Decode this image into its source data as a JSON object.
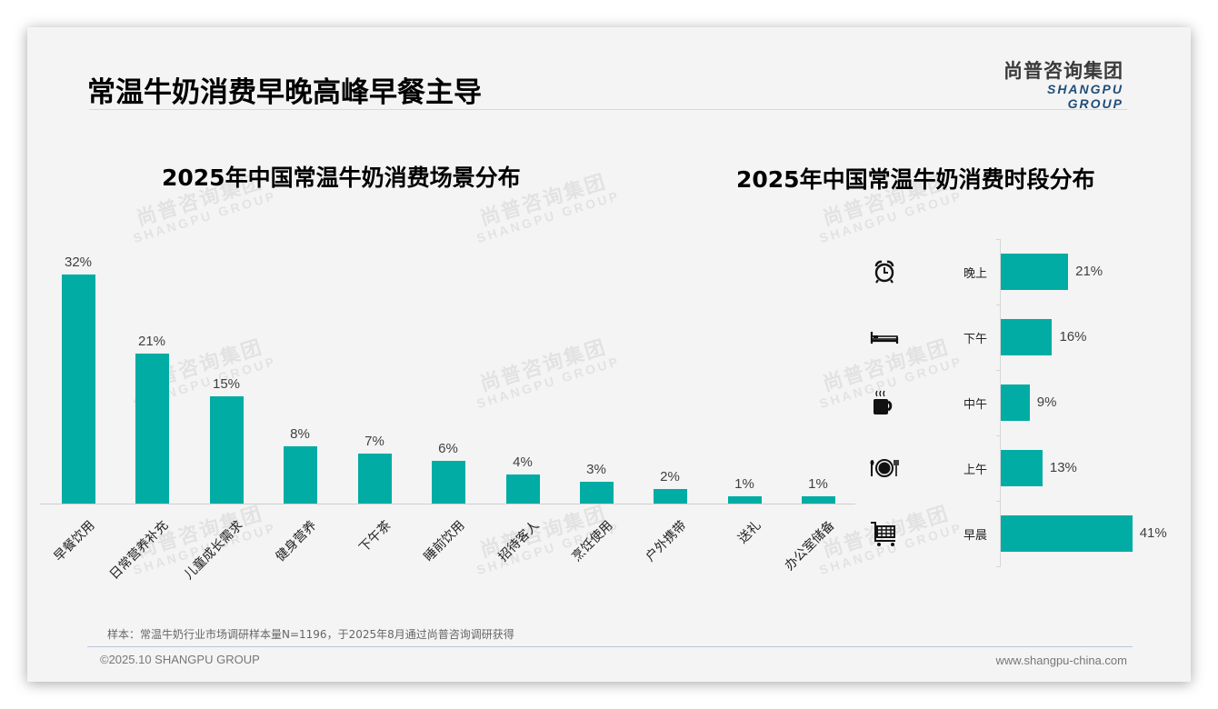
{
  "slide": {
    "title": "常温牛奶消费早晚高峰早餐主导",
    "logo": {
      "cn": "尚普咨询集团",
      "en": "SHANGPU GROUP"
    },
    "watermark": {
      "cn": "尚普咨询集团",
      "en": "SHANGPU GROUP"
    },
    "note": "样本：常温牛奶行业市场调研样本量N=1196，于2025年8月通过尚普咨询调研获得",
    "footer": {
      "left": "©2025.10 SHANGPU GROUP",
      "right": "www.shangpu-china.com"
    },
    "colors": {
      "bar": "#00aca3",
      "background": "#f4f4f4",
      "logo_en": "#1f4e79"
    }
  },
  "chart_data": [
    {
      "type": "bar",
      "title": "2025年中国常温牛奶消费场景分布",
      "categories": [
        "早餐饮用",
        "日常营养补充",
        "儿童成长需求",
        "健身营养",
        "下午茶",
        "睡前饮用",
        "招待客人",
        "烹饪使用",
        "户外携带",
        "送礼",
        "办公室储备"
      ],
      "values": [
        32,
        21,
        15,
        8,
        7,
        6,
        4,
        3,
        2,
        1,
        1
      ],
      "labels": [
        "32%",
        "21%",
        "15%",
        "8%",
        "7%",
        "6%",
        "4%",
        "3%",
        "2%",
        "1%",
        "1%"
      ],
      "unit": "%",
      "xlabel": "",
      "ylabel": "",
      "grid": false,
      "legend": "none",
      "orientation": "vertical"
    },
    {
      "type": "bar",
      "title": "2025年中国常温牛奶消费时段分布",
      "categories": [
        "晚上",
        "下午",
        "中午",
        "上午",
        "早晨"
      ],
      "values": [
        21,
        16,
        9,
        13,
        41
      ],
      "labels": [
        "21%",
        "16%",
        "9%",
        "13%",
        "41%"
      ],
      "icons": [
        "alarm-clock-icon",
        "bed-icon",
        "hot-cup-icon",
        "plate-cutlery-icon",
        "shopping-cart-icon"
      ],
      "unit": "%",
      "xlabel": "",
      "ylabel": "",
      "grid": false,
      "legend": "none",
      "orientation": "horizontal"
    }
  ]
}
